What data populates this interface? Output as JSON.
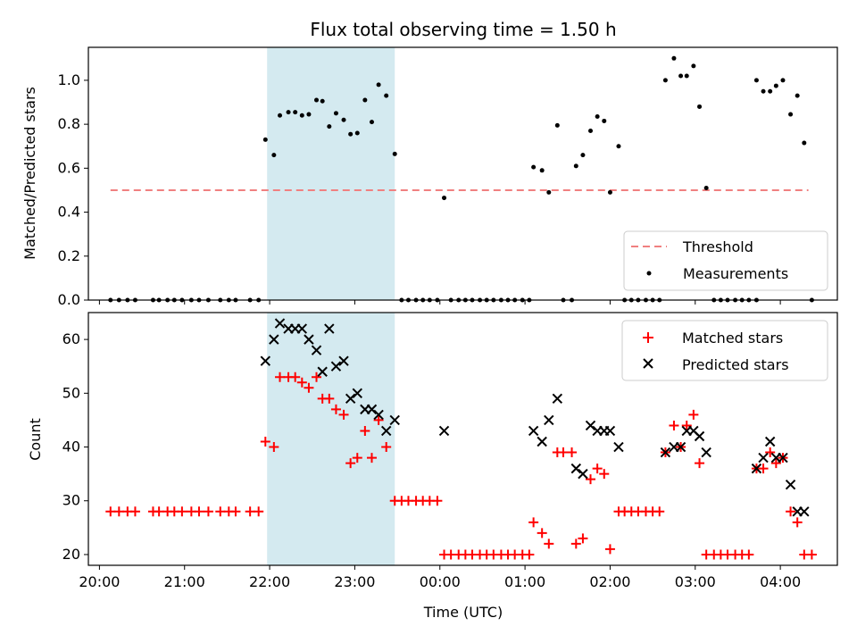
{
  "chart_data": [
    {
      "type": "scatter",
      "title": "Flux total observing time = 1.50 h",
      "xlabel": "",
      "ylabel": "Matched/Predicted stars",
      "ylim": [
        0,
        1.15
      ],
      "yticks": [
        "0.0",
        "0.2",
        "0.4",
        "0.6",
        "0.8",
        "1.0"
      ],
      "xlim": [
        19.87,
        28.67
      ],
      "legend_position": "lower-right",
      "highlight_span": [
        21.97,
        23.47
      ],
      "highlight_color": "#d4eaf0",
      "threshold": {
        "name": "Threshold",
        "value": 0.5,
        "x_range": [
          20.13,
          28.33
        ],
        "color": "#f08080"
      },
      "series": [
        {
          "name": "Measurements",
          "color": "#000000",
          "points": [
            [
              20.13,
              0
            ],
            [
              20.23,
              0
            ],
            [
              20.33,
              0
            ],
            [
              20.42,
              0
            ],
            [
              20.63,
              0
            ],
            [
              20.7,
              0
            ],
            [
              20.8,
              0
            ],
            [
              20.88,
              0
            ],
            [
              20.97,
              0
            ],
            [
              21.08,
              0
            ],
            [
              21.17,
              0
            ],
            [
              21.28,
              0
            ],
            [
              21.42,
              0
            ],
            [
              21.52,
              0
            ],
            [
              21.6,
              0
            ],
            [
              21.77,
              0
            ],
            [
              21.87,
              0
            ],
            [
              21.95,
              0.73
            ],
            [
              22.05,
              0.66
            ],
            [
              22.12,
              0.84
            ],
            [
              22.22,
              0.855
            ],
            [
              22.3,
              0.855
            ],
            [
              22.38,
              0.84
            ],
            [
              22.46,
              0.845
            ],
            [
              22.55,
              0.91
            ],
            [
              22.62,
              0.905
            ],
            [
              22.7,
              0.79
            ],
            [
              22.78,
              0.85
            ],
            [
              22.87,
              0.82
            ],
            [
              22.95,
              0.755
            ],
            [
              23.03,
              0.76
            ],
            [
              23.12,
              0.91
            ],
            [
              23.2,
              0.81
            ],
            [
              23.28,
              0.98
            ],
            [
              23.37,
              0.93
            ],
            [
              23.47,
              0.665
            ],
            [
              23.55,
              0
            ],
            [
              23.63,
              0
            ],
            [
              23.72,
              0
            ],
            [
              23.8,
              0
            ],
            [
              23.88,
              0
            ],
            [
              23.97,
              0
            ],
            [
              24.05,
              0.465
            ],
            [
              24.13,
              0
            ],
            [
              24.22,
              0
            ],
            [
              24.3,
              0
            ],
            [
              24.38,
              0
            ],
            [
              24.47,
              0
            ],
            [
              24.55,
              0
            ],
            [
              24.63,
              0
            ],
            [
              24.72,
              0
            ],
            [
              24.8,
              0
            ],
            [
              24.88,
              0
            ],
            [
              24.97,
              0
            ],
            [
              25.05,
              0
            ],
            [
              25.1,
              0.605
            ],
            [
              25.2,
              0.59
            ],
            [
              25.28,
              0.49
            ],
            [
              25.38,
              0.795
            ],
            [
              25.45,
              0
            ],
            [
              25.55,
              0
            ],
            [
              25.6,
              0.61
            ],
            [
              25.68,
              0.66
            ],
            [
              25.77,
              0.77
            ],
            [
              25.85,
              0.835
            ],
            [
              25.93,
              0.815
            ],
            [
              26.0,
              0.49
            ],
            [
              26.1,
              0.7
            ],
            [
              26.17,
              0
            ],
            [
              26.25,
              0
            ],
            [
              26.33,
              0
            ],
            [
              26.42,
              0
            ],
            [
              26.5,
              0
            ],
            [
              26.58,
              0
            ],
            [
              26.65,
              1.0
            ],
            [
              26.75,
              1.1
            ],
            [
              26.83,
              1.02
            ],
            [
              26.9,
              1.02
            ],
            [
              26.98,
              1.065
            ],
            [
              27.05,
              0.88
            ],
            [
              27.13,
              0.51
            ],
            [
              27.22,
              0
            ],
            [
              27.3,
              0
            ],
            [
              27.38,
              0
            ],
            [
              27.47,
              0
            ],
            [
              27.55,
              0
            ],
            [
              27.63,
              0
            ],
            [
              27.72,
              0
            ],
            [
              27.72,
              1.0
            ],
            [
              27.8,
              0.95
            ],
            [
              27.88,
              0.95
            ],
            [
              27.95,
              0.975
            ],
            [
              28.03,
              1.0
            ],
            [
              28.12,
              0.845
            ],
            [
              28.2,
              0.93
            ],
            [
              28.28,
              0.715
            ],
            [
              28.37,
              0
            ]
          ]
        }
      ]
    },
    {
      "type": "scatter",
      "title": "",
      "xlabel": "Time (UTC)",
      "ylabel": "Count",
      "ylim": [
        18,
        65
      ],
      "yticks": [
        "20",
        "30",
        "40",
        "50",
        "60"
      ],
      "xlim": [
        19.87,
        28.67
      ],
      "xtick_values": [
        20,
        21,
        22,
        23,
        24,
        25,
        26,
        27,
        28
      ],
      "xtick_labels": [
        "20:00",
        "21:00",
        "22:00",
        "23:00",
        "00:00",
        "01:00",
        "02:00",
        "03:00",
        "04:00"
      ],
      "legend_position": "top-right",
      "highlight_span": [
        21.97,
        23.47
      ],
      "highlight_color": "#d4eaf0",
      "series": [
        {
          "name": "Matched stars",
          "marker": "plus",
          "color": "#ff0000",
          "points": [
            [
              20.13,
              28
            ],
            [
              20.23,
              28
            ],
            [
              20.33,
              28
            ],
            [
              20.42,
              28
            ],
            [
              20.63,
              28
            ],
            [
              20.7,
              28
            ],
            [
              20.8,
              28
            ],
            [
              20.88,
              28
            ],
            [
              20.97,
              28
            ],
            [
              21.08,
              28
            ],
            [
              21.17,
              28
            ],
            [
              21.28,
              28
            ],
            [
              21.42,
              28
            ],
            [
              21.52,
              28
            ],
            [
              21.6,
              28
            ],
            [
              21.77,
              28
            ],
            [
              21.87,
              28
            ],
            [
              21.95,
              41
            ],
            [
              22.05,
              40
            ],
            [
              22.12,
              53
            ],
            [
              22.22,
              53
            ],
            [
              22.3,
              53
            ],
            [
              22.38,
              52
            ],
            [
              22.46,
              51
            ],
            [
              22.55,
              53
            ],
            [
              22.62,
              49
            ],
            [
              22.7,
              49
            ],
            [
              22.78,
              47
            ],
            [
              22.87,
              46
            ],
            [
              22.95,
              37
            ],
            [
              23.03,
              38
            ],
            [
              23.12,
              43
            ],
            [
              23.2,
              38
            ],
            [
              23.28,
              45
            ],
            [
              23.37,
              40
            ],
            [
              23.47,
              30
            ],
            [
              23.55,
              30
            ],
            [
              23.63,
              30
            ],
            [
              23.72,
              30
            ],
            [
              23.8,
              30
            ],
            [
              23.88,
              30
            ],
            [
              23.97,
              30
            ],
            [
              24.05,
              20
            ],
            [
              24.13,
              20
            ],
            [
              24.22,
              20
            ],
            [
              24.3,
              20
            ],
            [
              24.38,
              20
            ],
            [
              24.47,
              20
            ],
            [
              24.55,
              20
            ],
            [
              24.63,
              20
            ],
            [
              24.72,
              20
            ],
            [
              24.8,
              20
            ],
            [
              24.88,
              20
            ],
            [
              24.97,
              20
            ],
            [
              25.05,
              20
            ],
            [
              25.1,
              26
            ],
            [
              25.2,
              24
            ],
            [
              25.28,
              22
            ],
            [
              25.38,
              39
            ],
            [
              25.45,
              39
            ],
            [
              25.55,
              39
            ],
            [
              25.6,
              22
            ],
            [
              25.68,
              23
            ],
            [
              25.77,
              34
            ],
            [
              25.85,
              36
            ],
            [
              25.93,
              35
            ],
            [
              26.0,
              21
            ],
            [
              26.1,
              28
            ],
            [
              26.17,
              28
            ],
            [
              26.25,
              28
            ],
            [
              26.33,
              28
            ],
            [
              26.42,
              28
            ],
            [
              26.5,
              28
            ],
            [
              26.58,
              28
            ],
            [
              26.65,
              39
            ],
            [
              26.75,
              44
            ],
            [
              26.83,
              40
            ],
            [
              26.9,
              44
            ],
            [
              26.98,
              46
            ],
            [
              27.05,
              37
            ],
            [
              27.13,
              20
            ],
            [
              27.22,
              20
            ],
            [
              27.3,
              20
            ],
            [
              27.38,
              20
            ],
            [
              27.47,
              20
            ],
            [
              27.55,
              20
            ],
            [
              27.63,
              20
            ],
            [
              27.72,
              36
            ],
            [
              27.8,
              36
            ],
            [
              27.88,
              39
            ],
            [
              27.95,
              37
            ],
            [
              28.03,
              38
            ],
            [
              28.12,
              28
            ],
            [
              28.2,
              26
            ],
            [
              28.28,
              20
            ],
            [
              28.37,
              20
            ]
          ]
        },
        {
          "name": "Predicted stars",
          "marker": "x",
          "color": "#000000",
          "points": [
            [
              21.95,
              56
            ],
            [
              22.05,
              60
            ],
            [
              22.12,
              63
            ],
            [
              22.22,
              62
            ],
            [
              22.3,
              62
            ],
            [
              22.38,
              62
            ],
            [
              22.46,
              60
            ],
            [
              22.55,
              58
            ],
            [
              22.62,
              54
            ],
            [
              22.7,
              62
            ],
            [
              22.78,
              55
            ],
            [
              22.87,
              56
            ],
            [
              22.95,
              49
            ],
            [
              23.03,
              50
            ],
            [
              23.12,
              47
            ],
            [
              23.2,
              47
            ],
            [
              23.28,
              46
            ],
            [
              23.37,
              43
            ],
            [
              23.47,
              45
            ],
            [
              24.05,
              43
            ],
            [
              25.1,
              43
            ],
            [
              25.2,
              41
            ],
            [
              25.28,
              45
            ],
            [
              25.38,
              49
            ],
            [
              25.6,
              36
            ],
            [
              25.68,
              35
            ],
            [
              25.77,
              44
            ],
            [
              25.85,
              43
            ],
            [
              25.93,
              43
            ],
            [
              26.0,
              43
            ],
            [
              26.1,
              40
            ],
            [
              26.65,
              39
            ],
            [
              26.75,
              40
            ],
            [
              26.83,
              40
            ],
            [
              26.9,
              43
            ],
            [
              26.98,
              43
            ],
            [
              27.05,
              42
            ],
            [
              27.13,
              39
            ],
            [
              27.72,
              36
            ],
            [
              27.8,
              38
            ],
            [
              27.88,
              41
            ],
            [
              27.95,
              38
            ],
            [
              28.03,
              38
            ],
            [
              28.12,
              33
            ],
            [
              28.2,
              28
            ],
            [
              28.28,
              28
            ]
          ]
        }
      ]
    }
  ]
}
